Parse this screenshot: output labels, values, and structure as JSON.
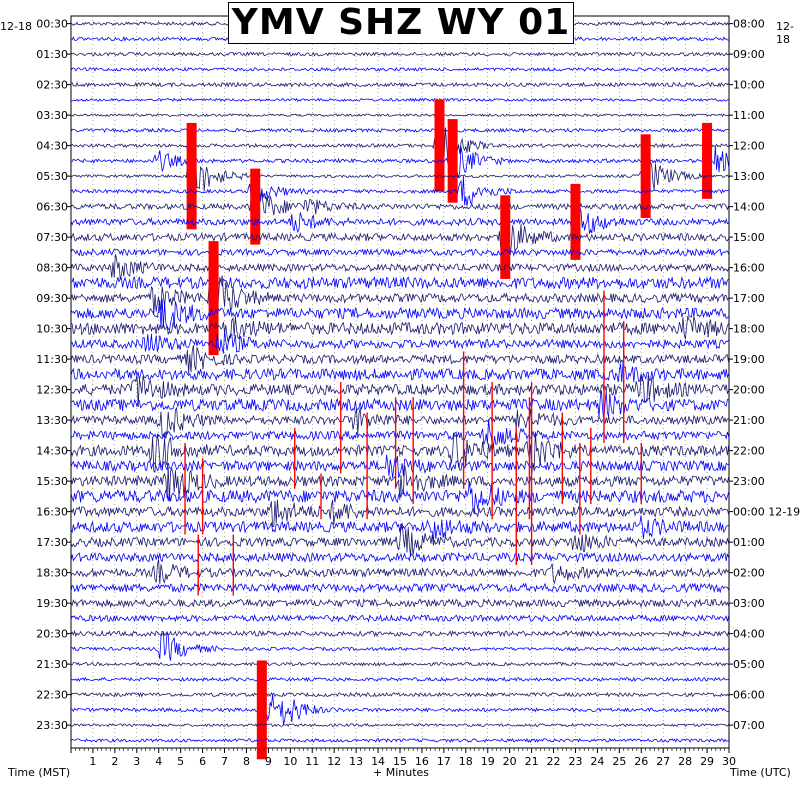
{
  "title": "YMV SHZ WY 01",
  "corner_left": "12-18",
  "corner_right": "12-18",
  "xlabel_left": "Time (MST)",
  "xlabel_center": "+ Minutes",
  "xlabel_right": "Time (UTC)",
  "colors": {
    "trace_dark": "#1a1a6e",
    "trace_blue": "#0000ff",
    "clipped": "#ff0000",
    "grid": "#000000"
  },
  "chart_data": {
    "type": "line",
    "description_kind": "helicorder",
    "x_range": [
      0,
      30
    ],
    "x_ticks": [
      "1",
      "2",
      "3",
      "4",
      "5",
      "6",
      "7",
      "8",
      "9",
      "10",
      "11",
      "12",
      "13",
      "14",
      "15",
      "16",
      "17",
      "18",
      "19",
      "20",
      "21",
      "22",
      "23",
      "24",
      "25",
      "26",
      "27",
      "28",
      "29",
      "30"
    ],
    "rows_per_hour": 2,
    "left_labels": [
      "00:30",
      "01:30",
      "02:30",
      "03:30",
      "04:30",
      "05:30",
      "06:30",
      "07:30",
      "08:30",
      "09:30",
      "10:30",
      "11:30",
      "12:30",
      "13:30",
      "14:30",
      "15:30",
      "16:30",
      "17:30",
      "18:30",
      "19:30",
      "20:30",
      "21:30",
      "22:30",
      "23:30"
    ],
    "right_labels": [
      "08:00",
      "09:00",
      "10:00",
      "11:00",
      "12:00",
      "13:00",
      "14:00",
      "15:00",
      "16:00",
      "17:00",
      "18:00",
      "19:00",
      "20:00",
      "21:00",
      "22:00",
      "23:00",
      "00:00 12-19",
      "01:00",
      "02:00",
      "03:00",
      "04:00",
      "05:00",
      "06:00",
      "07:00"
    ],
    "row_colors": [
      "trace_dark",
      "trace_blue",
      "trace_dark",
      "trace_blue"
    ],
    "clipped_events_minutes": [
      5.5,
      8.4,
      6.5,
      16.8,
      17.4,
      17.9,
      19.8,
      23.0,
      26.2,
      29.0,
      8.7
    ],
    "strong_events_minutes": [
      4.0,
      8.7,
      4.5,
      15.2
    ]
  }
}
